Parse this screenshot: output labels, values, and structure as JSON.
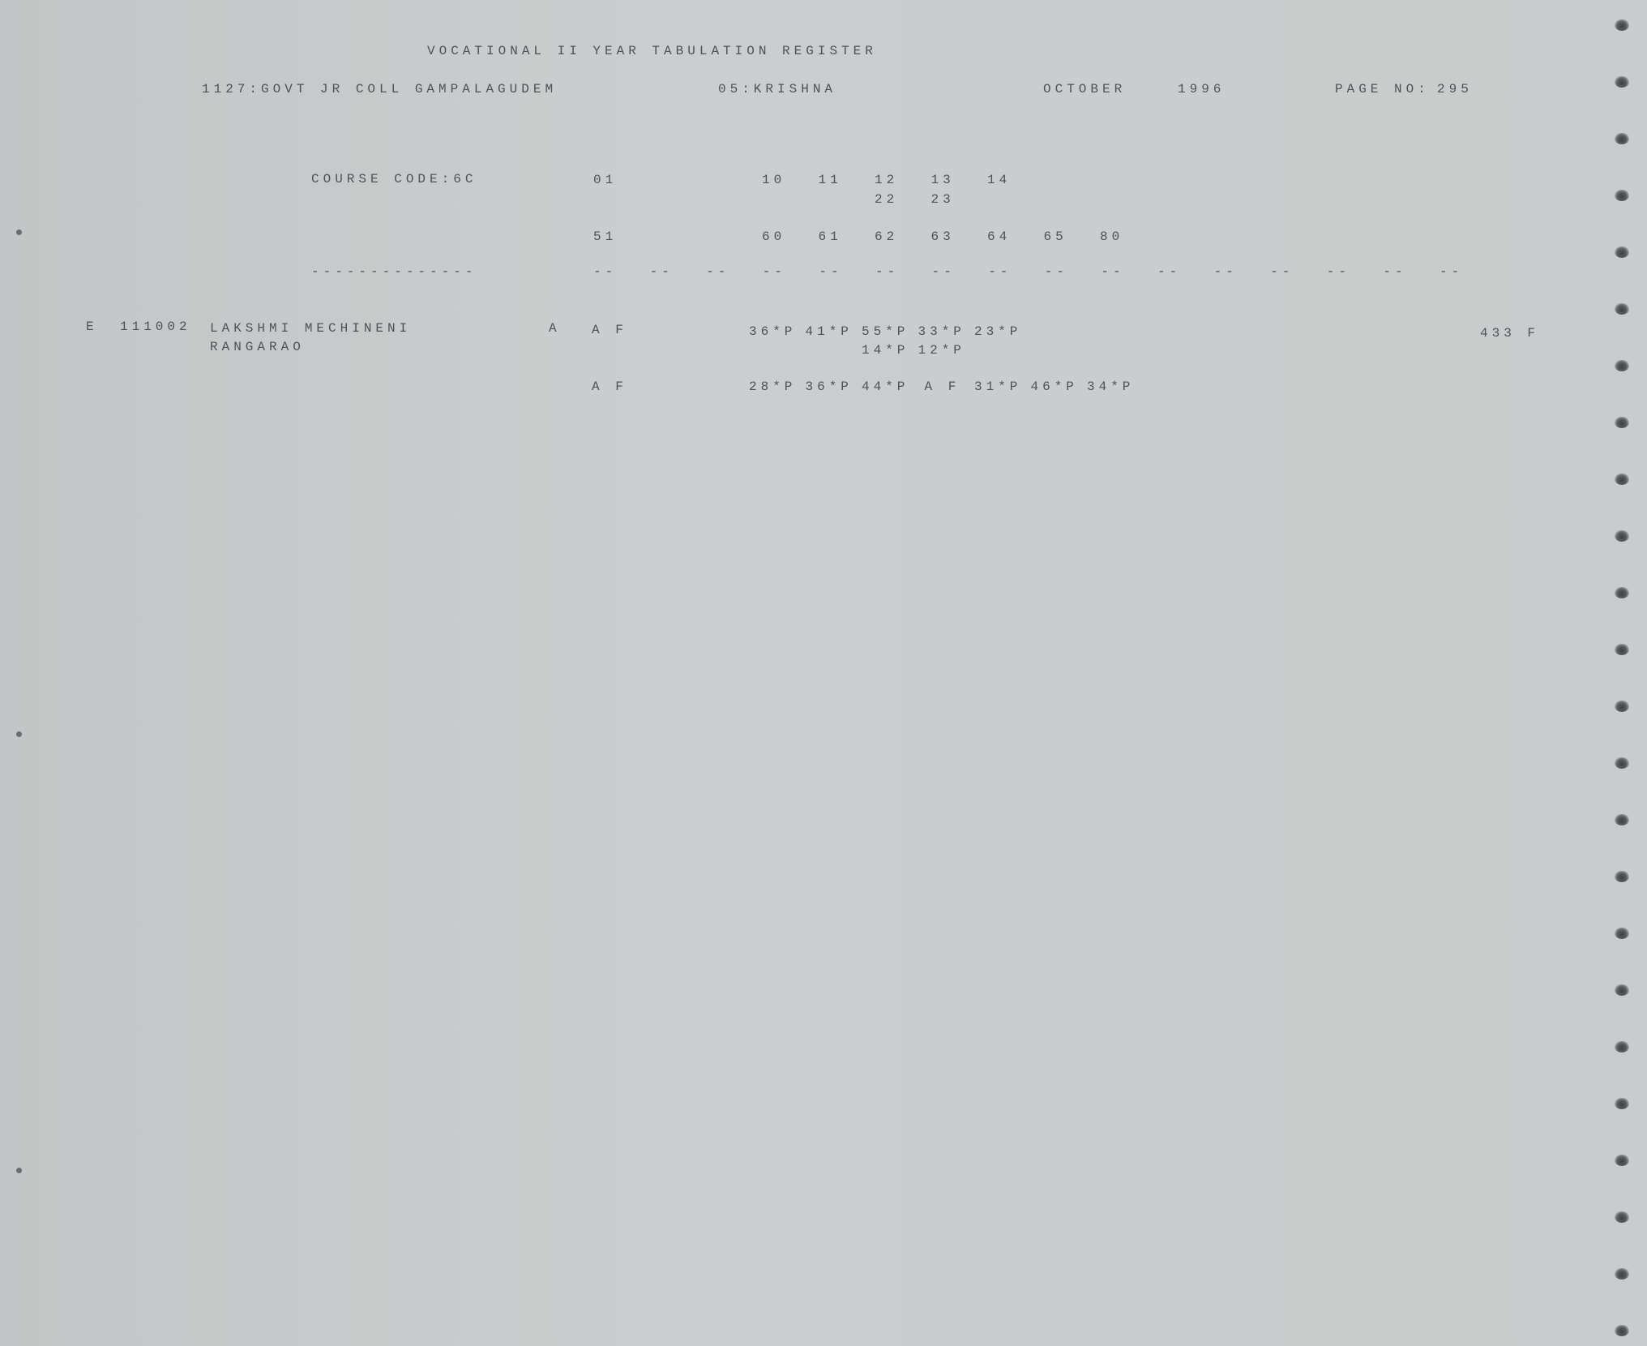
{
  "header": {
    "title": "VOCATIONAL II YEAR TABULATION REGISTER",
    "college": "1127:GOVT JR COLL GAMPALAGUDEM",
    "district": "05:KRISHNA",
    "month": "OCTOBER",
    "year": "1996",
    "page_label": "PAGE NO:",
    "page_no": "295"
  },
  "course": {
    "label": "COURSE CODE:6C",
    "row1_first": "01",
    "row1_codes": [
      "10",
      "11",
      "12",
      "13",
      "14"
    ],
    "row1_sub": [
      "22",
      "23"
    ],
    "row2_first": "51",
    "row2_codes": [
      "60",
      "61",
      "62",
      "63",
      "64",
      "65",
      "80"
    ],
    "label_rule": "--------------",
    "rule_cells": [
      "--",
      "--",
      "--",
      "--",
      "--",
      "--",
      "--",
      "--",
      "--",
      "--",
      "--",
      "--",
      "--",
      "--",
      "--",
      "--"
    ]
  },
  "students": [
    {
      "prefix": "E",
      "hall_ticket": "111002",
      "name_line1": "LAKSHMI MECHINENI",
      "name_line2": "RANGARAO",
      "flag": "A",
      "paper1_result": "A F",
      "paper1_marks": [
        "36*P",
        "41*P",
        "55*P",
        "33*P",
        "23*P"
      ],
      "paper1_sub_marks": [
        "14*P",
        "12*P"
      ],
      "paper2_result": "A F",
      "paper2_marks": [
        "28*P",
        "36*P",
        "44*P",
        "A F",
        "31*P",
        "46*P",
        "34*P"
      ],
      "total": "433 F"
    }
  ]
}
